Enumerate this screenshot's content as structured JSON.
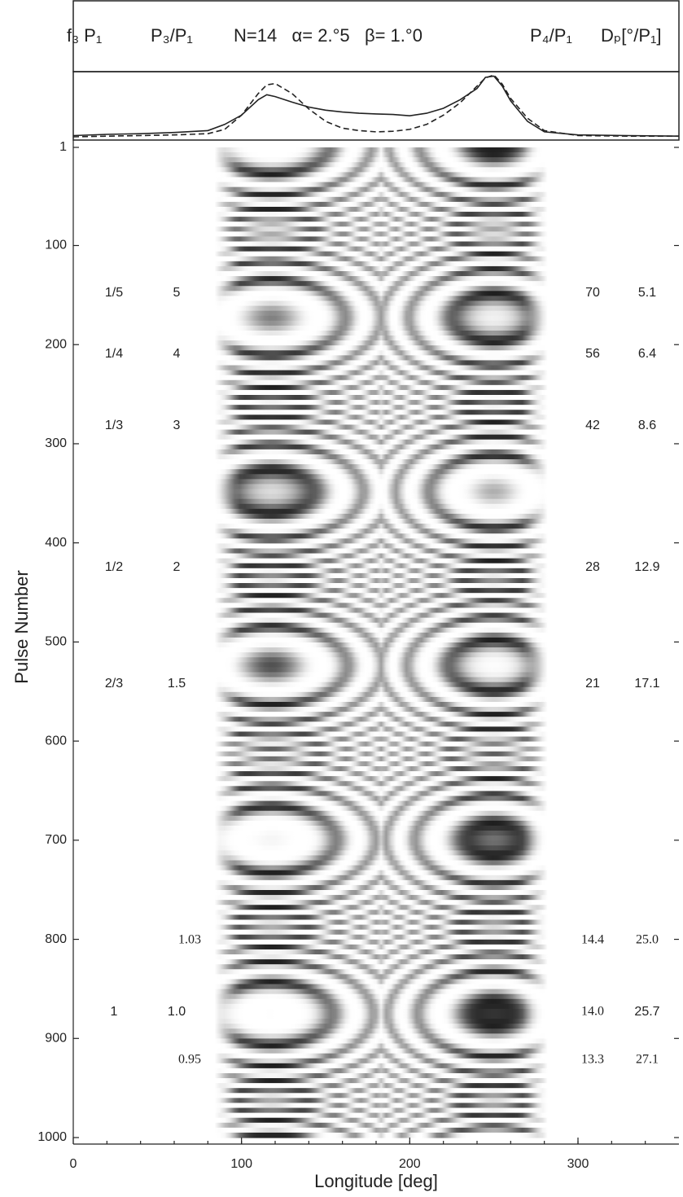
{
  "chart_data": {
    "type": "pulse-stack",
    "header": {
      "f3": "f₃ P₁",
      "p3": "P₃/P₁",
      "params": "N=14   α= 2.°5   β= 1.°0",
      "p4": "P₄/P₁",
      "dp": "Dₚ[°/P₁]"
    },
    "ylabel": "Pulse Number",
    "xlabel": "Longitude [deg]",
    "xlim": [
      0,
      360
    ],
    "xticks": [
      0,
      100,
      200,
      300
    ],
    "ylim": [
      1,
      1000
    ],
    "yticks": [
      1,
      100,
      200,
      300,
      400,
      500,
      600,
      700,
      800,
      900,
      1000
    ],
    "profile": {
      "ylim": [
        0,
        1
      ],
      "x": [
        0,
        20,
        40,
        60,
        80,
        90,
        100,
        110,
        115,
        120,
        130,
        140,
        150,
        160,
        170,
        180,
        190,
        200,
        210,
        220,
        230,
        240,
        245,
        250,
        255,
        260,
        270,
        280,
        300,
        330,
        360
      ],
      "series": [
        {
          "style": "solid",
          "color": "#222222",
          "values": [
            0.02,
            0.04,
            0.05,
            0.07,
            0.1,
            0.2,
            0.35,
            0.6,
            0.68,
            0.65,
            0.56,
            0.48,
            0.43,
            0.4,
            0.38,
            0.37,
            0.36,
            0.34,
            0.38,
            0.46,
            0.6,
            0.78,
            0.96,
            0.98,
            0.82,
            0.58,
            0.25,
            0.08,
            0.03,
            0.02,
            0.01
          ]
        },
        {
          "style": "dashed",
          "color": "#222222",
          "values": [
            0,
            0.01,
            0.02,
            0.03,
            0.05,
            0.12,
            0.35,
            0.7,
            0.84,
            0.86,
            0.7,
            0.45,
            0.25,
            0.14,
            0.1,
            0.08,
            0.09,
            0.12,
            0.2,
            0.35,
            0.55,
            0.82,
            0.95,
            1.0,
            0.85,
            0.62,
            0.3,
            0.1,
            0.02,
            0.01,
            0.01
          ]
        }
      ]
    },
    "rows": [
      [
        "1/5",
        "5",
        "70",
        "5.1"
      ],
      [
        "1/4",
        "4",
        "56",
        "6.4"
      ],
      [
        "1/3",
        "3",
        "42",
        "8.6"
      ],
      [
        "1/2",
        "2",
        "28",
        "12.9"
      ],
      [
        "2/3",
        "1.5",
        "21",
        "17.1"
      ],
      [
        null,
        "1.03",
        "14.4",
        "25.0"
      ],
      [
        "1",
        "1.0",
        "14.0",
        "25.7"
      ],
      [
        null,
        "0.95",
        "13.3",
        "27.1"
      ]
    ]
  }
}
